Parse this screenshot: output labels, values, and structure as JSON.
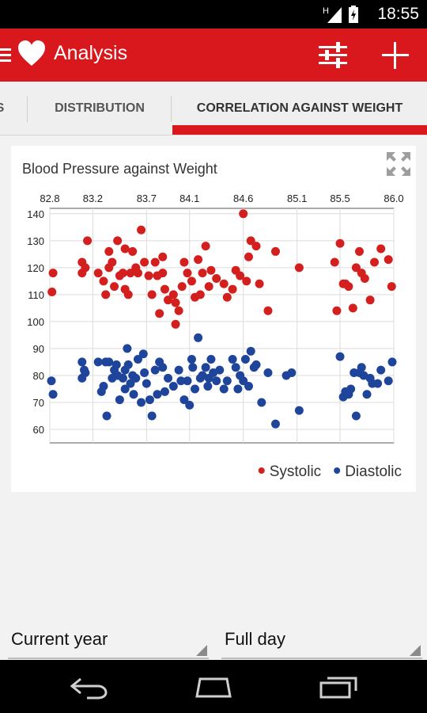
{
  "status_bar": {
    "time": "18:55",
    "network_label": "H",
    "icons": [
      "signal-icon",
      "battery-charging-icon"
    ]
  },
  "app_bar": {
    "title": "Analysis",
    "icons": [
      "menu-icon",
      "heart-logo-icon",
      "filter-sliders-icon",
      "add-icon"
    ]
  },
  "tabs": [
    {
      "label": "S",
      "active": false
    },
    {
      "label": "DISTRIBUTION",
      "active": false
    },
    {
      "label": "CORRELATION AGAINST WEIGHT",
      "active": true
    }
  ],
  "card": {
    "expand_icon": "expand-icon"
  },
  "chart_data": {
    "type": "scatter",
    "title": "Blood Pressure against Weight",
    "xlabel": "",
    "ylabel": "",
    "xlim": [
      82.8,
      86.0
    ],
    "ylim": [
      55,
      142
    ],
    "x_ticks": [
      "82.8",
      "83.2",
      "83.7",
      "84.1",
      "84.6",
      "85.1",
      "85.5",
      "86.0"
    ],
    "y_ticks": [
      "60",
      "70",
      "80",
      "90",
      "100",
      "110",
      "120",
      "130",
      "140"
    ],
    "grid": true,
    "legend_position": "bottom-right",
    "colors": {
      "Systolic": "#d41f1f",
      "Diastolic": "#1f459b"
    },
    "series": [
      {
        "name": "Systolic",
        "x": [
          82.82,
          82.83,
          83.1,
          83.1,
          83.13,
          83.15,
          83.25,
          83.3,
          83.32,
          83.35,
          83.35,
          83.38,
          83.4,
          83.43,
          83.45,
          83.48,
          83.5,
          83.53,
          83.5,
          83.55,
          83.57,
          83.6,
          83.62,
          83.65,
          83.68,
          83.72,
          83.75,
          83.78,
          83.8,
          83.82,
          83.85,
          83.87,
          83.85,
          83.9,
          83.95,
          83.97,
          83.97,
          84.0,
          84.03,
          84.05,
          84.08,
          84.12,
          84.15,
          84.18,
          84.2,
          84.22,
          84.25,
          84.28,
          84.3,
          84.35,
          84.42,
          84.45,
          84.5,
          84.53,
          84.57,
          84.6,
          84.63,
          84.65,
          84.67,
          84.72,
          84.75,
          84.83,
          84.9,
          85.12,
          85.45,
          85.47,
          85.5,
          85.53,
          85.55,
          85.58,
          85.62,
          85.65,
          85.68,
          85.7,
          85.73,
          85.78,
          85.82,
          85.88,
          85.95,
          85.98
        ],
        "y": [
          111,
          118,
          118,
          122,
          120,
          130,
          118,
          115,
          110,
          126,
          120,
          122,
          113,
          130,
          117,
          118,
          127,
          110,
          112,
          118,
          126,
          120,
          118,
          134,
          122,
          117,
          110,
          122,
          117,
          103,
          118,
          112,
          124,
          108,
          110,
          99,
          107,
          104,
          113,
          122,
          118,
          115,
          109,
          123,
          110,
          118,
          128,
          113,
          119,
          116,
          114,
          109,
          112,
          119,
          117,
          140,
          115,
          124,
          130,
          128,
          114,
          104,
          126,
          120,
          122,
          104,
          129,
          114,
          114,
          113,
          105,
          120,
          126,
          118,
          116,
          108,
          122,
          127,
          123,
          113
        ],
        "colors_hex": "#d41f1f"
      },
      {
        "name": "Diastolic",
        "x": [
          82.8,
          82.83,
          83.1,
          83.1,
          83.12,
          83.13,
          83.25,
          83.28,
          83.3,
          83.32,
          83.33,
          83.35,
          83.38,
          83.4,
          83.42,
          83.43,
          83.45,
          83.48,
          83.5,
          83.5,
          83.52,
          83.53,
          83.55,
          83.57,
          83.58,
          83.6,
          83.62,
          83.65,
          83.67,
          83.68,
          83.7,
          83.73,
          83.75,
          83.78,
          83.8,
          83.82,
          83.85,
          83.87,
          83.9,
          83.95,
          84.0,
          84.02,
          84.05,
          84.08,
          84.1,
          84.12,
          84.13,
          84.15,
          84.18,
          84.2,
          84.22,
          84.25,
          84.27,
          84.28,
          84.3,
          84.32,
          84.35,
          84.38,
          84.42,
          84.45,
          84.5,
          84.53,
          84.55,
          84.57,
          84.6,
          84.62,
          84.65,
          84.67,
          84.7,
          84.72,
          84.77,
          84.83,
          84.9,
          85.0,
          85.05,
          85.12,
          85.5,
          85.53,
          85.55,
          85.58,
          85.6,
          85.63,
          85.65,
          85.68,
          85.7,
          85.72,
          85.75,
          85.78,
          85.8,
          85.85,
          85.88,
          85.95,
          86.0
        ],
        "y": [
          78,
          73,
          79,
          85,
          82,
          81,
          85,
          74,
          76,
          85,
          65,
          85,
          79,
          82,
          84,
          80,
          71,
          79,
          75,
          82,
          90,
          84,
          77,
          80,
          73,
          79,
          86,
          70,
          88,
          81,
          77,
          71,
          65,
          82,
          73,
          85,
          83,
          74,
          79,
          76,
          82,
          78,
          71,
          78,
          69,
          86,
          83,
          75,
          94,
          79,
          80,
          83,
          76,
          79,
          86,
          81,
          78,
          82,
          75,
          78,
          86,
          83,
          75,
          80,
          78,
          86,
          76,
          89,
          83,
          84,
          70,
          81,
          62,
          80,
          81,
          67,
          87,
          72,
          74,
          73,
          75,
          81,
          65,
          81,
          83,
          80,
          73,
          79,
          77,
          77,
          82,
          78,
          85
        ],
        "colors_hex": "#1f459b"
      }
    ]
  },
  "filters": {
    "period": {
      "selected": "Current year"
    },
    "time_of_day": {
      "selected": "Full day"
    }
  },
  "nav_bar": {
    "icons": [
      "back-icon",
      "home-icon",
      "recent-apps-icon"
    ]
  }
}
